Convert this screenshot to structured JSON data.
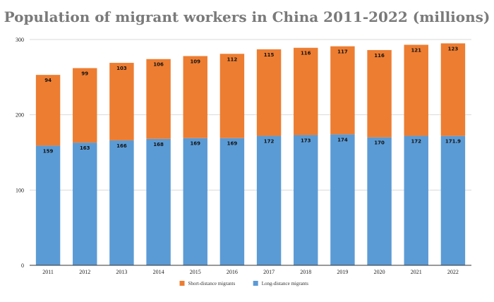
{
  "chart_data": {
    "type": "bar",
    "stacked": true,
    "title": "Population of migrant workers in China 2011-2022 (millions)",
    "xlabel": "",
    "ylabel": "",
    "categories": [
      "2011",
      "2012",
      "2013",
      "2014",
      "2015",
      "2016",
      "2017",
      "2018",
      "2019",
      "2020",
      "2021",
      "2022"
    ],
    "series": [
      {
        "name": "Long-distance migrants",
        "color": "#5b9bd5",
        "values": [
          159,
          163,
          166,
          168,
          169,
          169,
          172,
          173,
          174,
          170,
          172,
          171.9
        ],
        "labels": [
          "159",
          "163",
          "166",
          "168",
          "169",
          "169",
          "172",
          "173",
          "174",
          "170",
          "172",
          "171.9"
        ]
      },
      {
        "name": "Short-distance migrants",
        "color": "#ed7d31",
        "values": [
          94,
          99,
          103,
          106,
          109,
          112,
          115,
          116,
          117,
          116,
          121,
          123
        ],
        "labels": [
          "94",
          "99",
          "103",
          "106",
          "109",
          "112",
          "115",
          "116",
          "117",
          "116",
          "121",
          "123"
        ]
      }
    ],
    "legend_order": [
      1,
      0
    ],
    "legend_position": "bottom",
    "ylim": [
      0,
      300
    ],
    "yticks": [
      "0",
      "100",
      "200",
      "300"
    ],
    "grid": true
  }
}
